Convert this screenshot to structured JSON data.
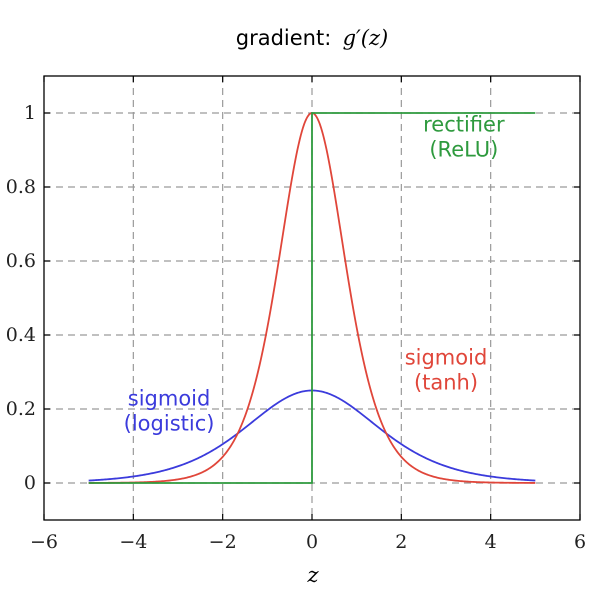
{
  "title": {
    "prefix": "gradient:",
    "math": "g′(z)"
  },
  "colors": {
    "logistic": "#3b3bdc",
    "tanh": "#e0463a",
    "relu": "#2e9a3e",
    "grid": "#9a9a9a",
    "axis": "#000000"
  },
  "chart_data": {
    "type": "line",
    "title": "gradient: g′(z)",
    "xlabel": "z",
    "ylabel": "",
    "xlim": [
      -6,
      6
    ],
    "ylim": [
      -0.1,
      1.1
    ],
    "x_ticks": [
      -6,
      -4,
      -2,
      0,
      2,
      4,
      6
    ],
    "y_ticks": [
      0,
      0.2,
      0.4,
      0.6,
      0.8,
      1
    ],
    "x_tick_labels": [
      "−6",
      "−4",
      "−2",
      "0",
      "2",
      "4",
      "6"
    ],
    "y_tick_labels": [
      "0",
      "0.2",
      "0.4",
      "0.6",
      "0.8",
      "1"
    ],
    "grid": true,
    "grid_style": "dashed",
    "legend": "none",
    "x_domain": [
      -5,
      5
    ],
    "series": [
      {
        "key": "logistic",
        "function": "sigmoid'(z) = s(z)(1 − s(z))",
        "peak": {
          "x": 0,
          "y": 0.25
        }
      },
      {
        "key": "tanh",
        "function": "tanh'(z) = 1 − tanh²(z)",
        "peak": {
          "x": 0,
          "y": 1
        }
      },
      {
        "key": "relu",
        "function": "step: 0 for z < 0, 1 for z ≥ 0",
        "points": [
          [
            -5,
            0
          ],
          [
            0,
            0
          ],
          [
            0,
            1
          ],
          [
            5,
            1
          ]
        ]
      }
    ],
    "annotations": [
      {
        "key": "relu",
        "lines": [
          "rectifier",
          "(ReLU)"
        ],
        "x": 3.4,
        "y": 0.95
      },
      {
        "key": "tanh",
        "lines": [
          "sigmoid",
          "(tanh)"
        ],
        "x": 3.0,
        "y": 0.32
      },
      {
        "key": "logistic",
        "lines": [
          "sigmoid",
          "(logistic)"
        ],
        "x": -3.2,
        "y": 0.21
      }
    ]
  }
}
